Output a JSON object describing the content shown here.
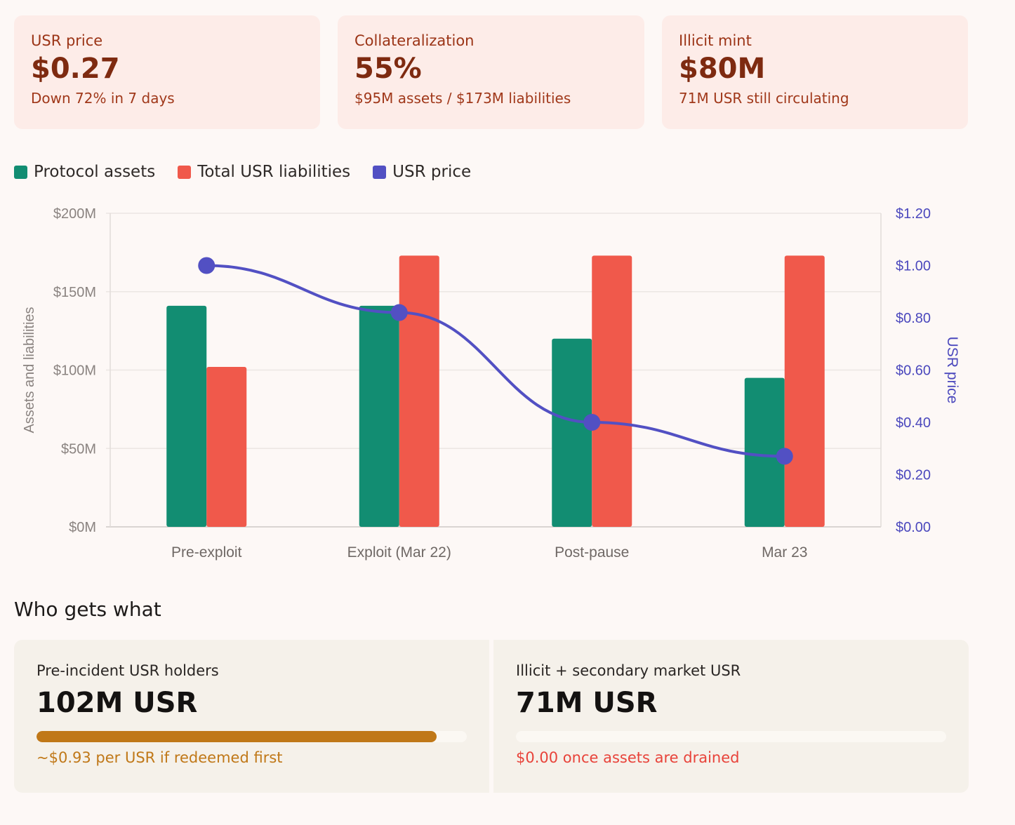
{
  "cards": [
    {
      "label": "USR price",
      "value": "$0.27",
      "sub": "Down 72% in 7 days"
    },
    {
      "label": "Collateralization",
      "value": "55%",
      "sub": "$95M assets / $173M liabilities"
    },
    {
      "label": "Illicit mint",
      "value": "$80M",
      "sub": "71M USR still circulating"
    }
  ],
  "legend": [
    {
      "label": "Protocol assets",
      "color": "#128d72"
    },
    {
      "label": "Total USR liabilities",
      "color": "#f0594b"
    },
    {
      "label": "USR price",
      "color": "#5250c3"
    }
  ],
  "chart_data": {
    "type": "bar",
    "categories": [
      "Pre-exploit",
      "Exploit (Mar 22)",
      "Post-pause",
      "Mar 23"
    ],
    "series": [
      {
        "name": "Protocol assets",
        "type": "bar",
        "axis": "left",
        "color": "#128d72",
        "values": [
          141,
          141,
          120,
          95
        ]
      },
      {
        "name": "Total USR liabilities",
        "type": "bar",
        "axis": "left",
        "color": "#f0594b",
        "values": [
          102,
          173,
          173,
          173
        ]
      },
      {
        "name": "USR price",
        "type": "line",
        "axis": "right",
        "color": "#5250c3",
        "values": [
          1.0,
          0.82,
          0.4,
          0.27
        ]
      }
    ],
    "ylabel": "Assets and liabilities",
    "y2label": "USR price",
    "ylim": [
      0,
      200
    ],
    "y2lim": [
      0,
      1.2
    ],
    "yticks": [
      "$0M",
      "$50M",
      "$100M",
      "$150M",
      "$200M"
    ],
    "y2ticks": [
      "$0.00",
      "$0.20",
      "$0.40",
      "$0.60",
      "$0.80",
      "$1.00",
      "$1.20"
    ],
    "grid": true
  },
  "section_title": "Who gets what",
  "outcomes": [
    {
      "label": "Pre-incident USR holders",
      "value": "102M USR",
      "fraction": 0.93,
      "note": "~$0.93 per USR if redeemed first",
      "color": "#c07818"
    },
    {
      "label": "Illicit + secondary market USR",
      "value": "71M USR",
      "fraction": 0.0,
      "note": "$0.00 once assets are drained",
      "color": "#e8433a"
    }
  ]
}
